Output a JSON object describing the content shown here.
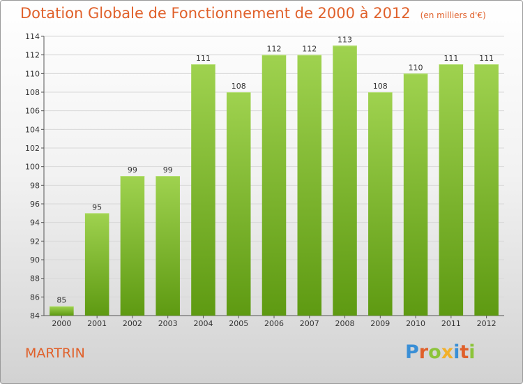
{
  "title": "Dotation Globale de Fonctionnement de 2000 à 2012",
  "unit_note": "(en milliers d'€)",
  "commune": "MARTRIN",
  "logo": {
    "text": "Proxiti",
    "letters": [
      {
        "ch": "P",
        "color": "#3a8fd6"
      },
      {
        "ch": "r",
        "color": "#e0602a"
      },
      {
        "ch": "o",
        "color": "#8cc43a"
      },
      {
        "ch": "x",
        "color": "#f2b02a"
      },
      {
        "ch": "i",
        "color": "#3a8fd6"
      },
      {
        "ch": "t",
        "color": "#e0602a"
      },
      {
        "ch": "i",
        "color": "#8cc43a"
      }
    ]
  },
  "colors": {
    "accent": "#e0602a",
    "bar_top": "#9fd24f",
    "bar_bottom": "#5e9a12",
    "grid": "#d8d8d8"
  },
  "chart_data": {
    "type": "bar",
    "title": "Dotation Globale de Fonctionnement de 2000 à 2012",
    "categories": [
      "2000",
      "2001",
      "2002",
      "2003",
      "2004",
      "2005",
      "2006",
      "2007",
      "2008",
      "2009",
      "2010",
      "2011",
      "2012"
    ],
    "values": [
      85,
      95,
      99,
      99,
      111,
      108,
      112,
      112,
      113,
      108,
      110,
      111,
      111
    ],
    "ylim": [
      84,
      114
    ],
    "yticks": [
      84,
      86,
      88,
      90,
      92,
      94,
      96,
      98,
      100,
      102,
      104,
      106,
      108,
      110,
      112,
      114
    ],
    "grid": true,
    "data_labels": true
  }
}
